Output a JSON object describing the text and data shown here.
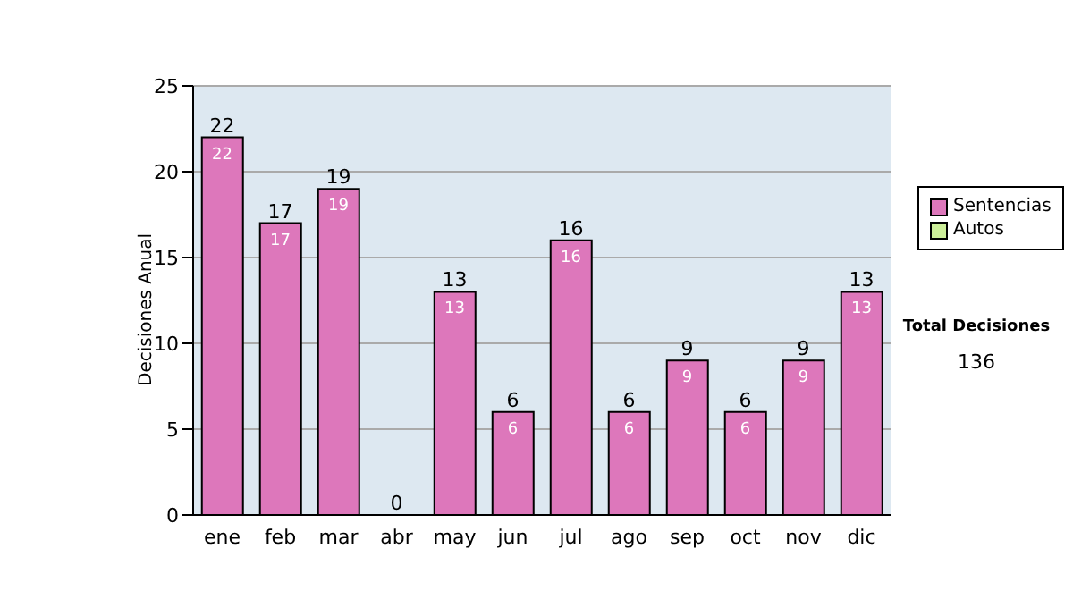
{
  "chart_data": {
    "type": "bar",
    "stacked": true,
    "ylabel": "Decisiones Anual",
    "categories": [
      "ene",
      "feb",
      "mar",
      "abr",
      "may",
      "jun",
      "jul",
      "ago",
      "sep",
      "oct",
      "nov",
      "dic"
    ],
    "series": [
      {
        "name": "Sentencias",
        "color": "#dd77bb",
        "values": [
          22,
          17,
          19,
          0,
          13,
          6,
          16,
          6,
          9,
          6,
          9,
          13
        ],
        "value_labels": [
          "22",
          "17",
          "19",
          null,
          "13",
          "6",
          "16",
          "6",
          "9",
          "6",
          "9",
          "13"
        ]
      },
      {
        "name": "Autos",
        "color": "#ccee99",
        "values": [
          0,
          0,
          0,
          0,
          0,
          0,
          0,
          0,
          0,
          0,
          0,
          0
        ]
      }
    ],
    "totals": [
      "22",
      "17",
      "19",
      "0",
      "13",
      "6",
      "16",
      "6",
      "9",
      "6",
      "9",
      "13"
    ],
    "ylim": [
      0,
      25
    ],
    "yticks": [
      0,
      5,
      10,
      15,
      20,
      25
    ],
    "grid": "y",
    "legend": "right",
    "annotations": [
      "Total Decisiones",
      "136"
    ]
  }
}
